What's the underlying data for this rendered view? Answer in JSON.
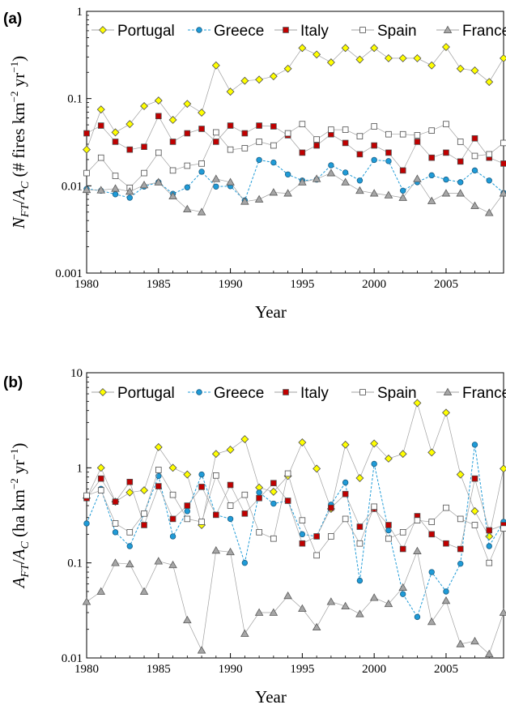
{
  "chart_data": [
    {
      "type": "line",
      "panel_label": "(a)",
      "xlabel": "Year",
      "ylabel": "N_FT/A_C (# fires km⁻² yr⁻¹)",
      "ylabel_parts": {
        "n": "N",
        "n_sub": "FT",
        "slash": "/",
        "a": "A",
        "a_sub": "C",
        "rest": " (# fires km",
        "exp1": "−2",
        "mid": " yr",
        "exp2": "−1",
        "close": ")"
      },
      "yscale": "log",
      "xlim": [
        1980,
        2009
      ],
      "ylim": [
        0.001,
        1
      ],
      "x_ticks": [
        1980,
        1985,
        1990,
        1995,
        2000,
        2005
      ],
      "x_tick_labels": [
        "1980",
        "1985",
        "1990",
        "1995",
        "2000",
        "2005"
      ],
      "y_ticks": [
        0.001,
        0.01,
        0.1,
        1
      ],
      "y_tick_labels": [
        "0.001",
        "0.01",
        "0.1",
        "1"
      ],
      "legend_position": "top",
      "x": [
        1980,
        1981,
        1982,
        1983,
        1984,
        1985,
        1986,
        1987,
        1988,
        1989,
        1990,
        1991,
        1992,
        1993,
        1994,
        1995,
        1996,
        1997,
        1998,
        1999,
        2000,
        2001,
        2002,
        2003,
        2004,
        2005,
        2006,
        2007,
        2008,
        2009
      ],
      "series": [
        {
          "name": "Portugal",
          "color": "#ffff00",
          "marker": "diamond",
          "line": "solid",
          "values": [
            0.026,
            0.075,
            0.041,
            0.051,
            0.082,
            0.095,
            0.057,
            0.087,
            0.069,
            0.24,
            0.12,
            0.16,
            0.165,
            0.18,
            0.22,
            0.38,
            0.32,
            0.26,
            0.38,
            0.28,
            0.38,
            0.29,
            0.29,
            0.29,
            0.24,
            0.39,
            0.22,
            0.21,
            0.155,
            0.29
          ]
        },
        {
          "name": "Greece",
          "color": "#1f9bd7",
          "marker": "circle",
          "line": "dashed",
          "values": [
            0.0092,
            0.0088,
            0.008,
            0.0073,
            0.0098,
            0.011,
            0.0081,
            0.0096,
            0.0145,
            0.0098,
            0.0099,
            0.0068,
            0.0198,
            0.0185,
            0.0135,
            0.0115,
            0.0118,
            0.0172,
            0.0142,
            0.0115,
            0.0198,
            0.0192,
            0.0088,
            0.011,
            0.0132,
            0.0118,
            0.011,
            0.015,
            0.0115,
            0.0083
          ]
        },
        {
          "name": "Italy",
          "color": "#c00000",
          "marker": "square",
          "line": "solid",
          "values": [
            0.04,
            0.049,
            0.032,
            0.026,
            0.028,
            0.063,
            0.032,
            0.04,
            0.045,
            0.032,
            0.049,
            0.04,
            0.049,
            0.048,
            0.038,
            0.024,
            0.029,
            0.039,
            0.031,
            0.023,
            0.029,
            0.024,
            0.015,
            0.032,
            0.021,
            0.024,
            0.019,
            0.035,
            0.021,
            0.018
          ]
        },
        {
          "name": "Spain",
          "color": "#ffffff",
          "marker": "square",
          "line": "solid",
          "values": [
            0.014,
            0.021,
            0.013,
            0.0095,
            0.014,
            0.024,
            0.015,
            0.017,
            0.018,
            0.041,
            0.026,
            0.027,
            0.032,
            0.029,
            0.04,
            0.051,
            0.034,
            0.044,
            0.044,
            0.037,
            0.048,
            0.039,
            0.039,
            0.038,
            0.043,
            0.051,
            0.032,
            0.022,
            0.023,
            0.031
          ]
        },
        {
          "name": "France",
          "color": "#a6a6a6",
          "marker": "triangle",
          "line": "solid",
          "values": [
            0.009,
            0.0089,
            0.0093,
            0.0086,
            0.0102,
            0.011,
            0.0076,
            0.0054,
            0.005,
            0.012,
            0.011,
            0.0066,
            0.007,
            0.0084,
            0.0082,
            0.011,
            0.012,
            0.014,
            0.011,
            0.0088,
            0.0082,
            0.0078,
            0.0073,
            0.012,
            0.0067,
            0.0082,
            0.0082,
            0.0059,
            0.0049,
            0.0082
          ]
        }
      ]
    },
    {
      "type": "line",
      "panel_label": "(b)",
      "xlabel": "Year",
      "ylabel": "A_FT/A_C (ha km⁻² yr⁻¹)",
      "ylabel_parts": {
        "n": "A",
        "n_sub": "FT",
        "slash": "/",
        "a": "A",
        "a_sub": "C",
        "rest": " (ha km",
        "exp1": "−2",
        "mid": " yr",
        "exp2": "−1",
        "close": ")"
      },
      "yscale": "log",
      "xlim": [
        1980,
        2009
      ],
      "ylim": [
        0.01,
        10
      ],
      "x_ticks": [
        1980,
        1985,
        1990,
        1995,
        2000,
        2005
      ],
      "x_tick_labels": [
        "1980",
        "1985",
        "1990",
        "1995",
        "2000",
        "2005"
      ],
      "y_ticks": [
        0.01,
        0.1,
        1,
        10
      ],
      "y_tick_labels": [
        "0.01",
        "0.1",
        "1",
        "10"
      ],
      "legend_position": "top",
      "x": [
        1980,
        1981,
        1982,
        1983,
        1984,
        1985,
        1986,
        1987,
        1988,
        1989,
        1990,
        1991,
        1992,
        1993,
        1994,
        1995,
        1996,
        1997,
        1998,
        1999,
        2000,
        2001,
        2002,
        2003,
        2004,
        2005,
        2006,
        2007,
        2008,
        2009
      ],
      "series": [
        {
          "name": "Portugal",
          "color": "#ffff00",
          "marker": "diamond",
          "line": "solid",
          "values": [
            0.48,
            1.0,
            0.44,
            0.55,
            0.58,
            1.65,
            1.0,
            0.85,
            0.25,
            1.4,
            1.55,
            2.0,
            0.62,
            0.56,
            0.82,
            1.85,
            0.98,
            0.37,
            1.75,
            0.78,
            1.8,
            1.25,
            1.4,
            4.8,
            1.45,
            3.8,
            0.85,
            0.35,
            0.19,
            0.98
          ]
        },
        {
          "name": "Greece",
          "color": "#1f9bd7",
          "marker": "circle",
          "line": "dashed",
          "values": [
            0.26,
            0.6,
            0.21,
            0.15,
            0.33,
            0.82,
            0.19,
            0.35,
            0.85,
            0.32,
            0.29,
            0.1,
            0.55,
            0.42,
            0.45,
            0.2,
            0.19,
            0.41,
            0.7,
            0.065,
            1.1,
            0.22,
            0.047,
            0.027,
            0.08,
            0.05,
            0.098,
            1.75,
            0.15,
            0.27
          ]
        },
        {
          "name": "Italy",
          "color": "#c00000",
          "marker": "square",
          "line": "solid",
          "values": [
            0.48,
            0.77,
            0.44,
            0.71,
            0.25,
            0.64,
            0.29,
            0.4,
            0.63,
            0.32,
            0.66,
            0.33,
            0.48,
            0.69,
            0.45,
            0.16,
            0.19,
            0.38,
            0.53,
            0.24,
            0.37,
            0.25,
            0.14,
            0.31,
            0.2,
            0.16,
            0.14,
            0.77,
            0.22,
            0.25
          ]
        },
        {
          "name": "Spain",
          "color": "#ffffff",
          "marker": "square",
          "line": "solid",
          "values": [
            0.51,
            0.58,
            0.26,
            0.21,
            0.33,
            0.95,
            0.52,
            0.29,
            0.27,
            0.83,
            0.4,
            0.52,
            0.21,
            0.18,
            0.87,
            0.28,
            0.12,
            0.19,
            0.29,
            0.16,
            0.39,
            0.18,
            0.21,
            0.28,
            0.27,
            0.38,
            0.29,
            0.25,
            0.1,
            0.23
          ]
        },
        {
          "name": "France",
          "color": "#a6a6a6",
          "marker": "triangle",
          "line": "solid",
          "values": [
            0.039,
            0.05,
            0.1,
            0.097,
            0.05,
            0.104,
            0.095,
            0.025,
            0.012,
            0.135,
            0.13,
            0.018,
            0.03,
            0.03,
            0.045,
            0.033,
            0.021,
            0.039,
            0.035,
            0.029,
            0.043,
            0.037,
            0.055,
            0.133,
            0.024,
            0.04,
            0.014,
            0.015,
            0.011,
            0.03
          ]
        }
      ]
    }
  ]
}
